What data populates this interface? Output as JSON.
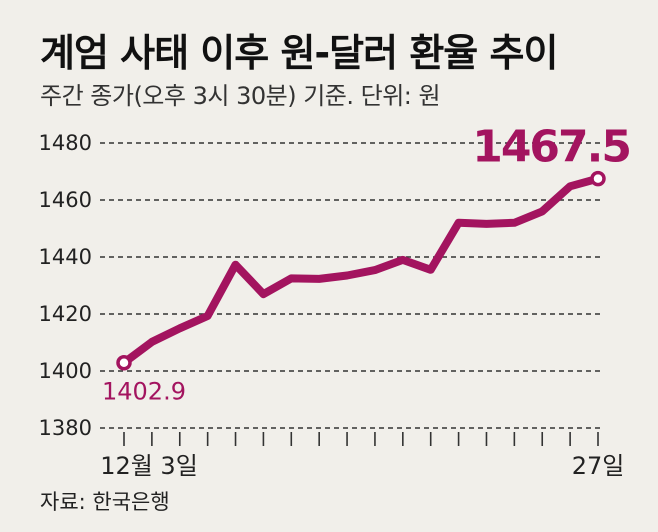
{
  "header": {
    "title": "계엄 사태 이후 원-달러 환율 추이",
    "subtitle": "주간 종가(오후 3시 30분) 기준. 단위: 원"
  },
  "footer": {
    "source": "자료: 한국은행"
  },
  "colors": {
    "line": "#a3145f",
    "background": "#f1efea",
    "grid": "#333333"
  },
  "chart_data": {
    "type": "line",
    "title": "계엄 사태 이후 원-달러 환율 추이",
    "subtitle": "주간 종가(오후 3시 30분) 기준. 단위: 원",
    "x_tick_labels": [
      "12월 3일",
      "27일"
    ],
    "y_ticks": [
      1380,
      1400,
      1420,
      1440,
      1460,
      1480
    ],
    "ylim": [
      1380,
      1480
    ],
    "grid": true,
    "grid_style": "dashed-horizontal",
    "series": [
      {
        "values": [
          1402.9,
          1410.2,
          1415.0,
          1419.3,
          1437.3,
          1427.0,
          1432.5,
          1432.3,
          1433.5,
          1435.4,
          1439.0,
          1435.5,
          1452.0,
          1451.6,
          1452.0,
          1456.0,
          1464.8,
          1467.5
        ]
      }
    ],
    "annotations": [
      {
        "label": "1402.9",
        "index": 0,
        "value": 1402.9
      },
      {
        "label": "1467.5",
        "index": 17,
        "value": 1467.5
      }
    ]
  }
}
